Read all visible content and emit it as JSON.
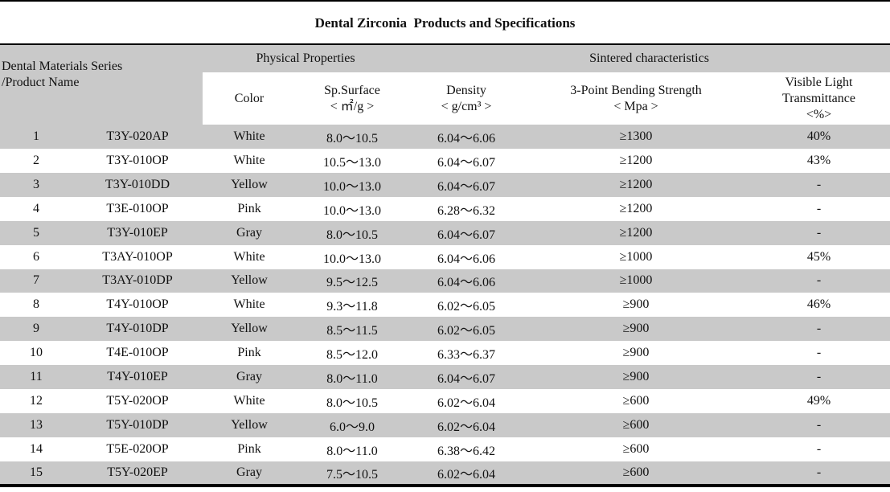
{
  "title": "Dental Zirconia  Products and Specifications",
  "colors": {
    "stripe": "#c9c9c9",
    "border": "#000000",
    "background": "#ffffff"
  },
  "table": {
    "row_header": {
      "line1": "Dental Materials Series",
      "line2": "/Product Name"
    },
    "groups": [
      {
        "label": "Physical Properties"
      },
      {
        "label": "Sintered characteristics"
      }
    ],
    "columns": [
      {
        "label": "Color",
        "unit": ""
      },
      {
        "label": "Sp.Surface",
        "unit": "< ㎡/g >"
      },
      {
        "label": "Density",
        "unit": "< g/cm³ >"
      },
      {
        "label": "3-Point Bending Strength",
        "unit": "< Mpa >"
      },
      {
        "label": "Visible Light",
        "label2": "Transmittance",
        "unit": "<%>"
      }
    ],
    "rows": [
      [
        "1",
        "T3Y-020AP",
        "White",
        "8.0～10.5",
        "6.04～6.06",
        "≥1300",
        "40%"
      ],
      [
        "2",
        "T3Y-010OP",
        "White",
        "10.5～13.0",
        "6.04～6.07",
        "≥1200",
        "43%"
      ],
      [
        "3",
        "T3Y-010DD",
        "Yellow",
        "10.0～13.0",
        "6.04～6.07",
        "≥1200",
        "-"
      ],
      [
        "4",
        "T3E-010OP",
        "Pink",
        "10.0～13.0",
        "6.28～6.32",
        "≥1200",
        "-"
      ],
      [
        "5",
        "T3Y-010EP",
        "Gray",
        "8.0～10.5",
        "6.04～6.07",
        "≥1200",
        "-"
      ],
      [
        "6",
        "T3AY-010OP",
        "White",
        "10.0～13.0",
        "6.04～6.06",
        "≥1000",
        "45%"
      ],
      [
        "7",
        "T3AY-010DP",
        "Yellow",
        "9.5～12.5",
        "6.04～6.06",
        "≥1000",
        "-"
      ],
      [
        "8",
        "T4Y-010OP",
        "White",
        "9.3～11.8",
        "6.02～6.05",
        "≥900",
        "46%"
      ],
      [
        "9",
        "T4Y-010DP",
        "Yellow",
        "8.5～11.5",
        "6.02～6.05",
        "≥900",
        "-"
      ],
      [
        "10",
        "T4E-010OP",
        "Pink",
        "8.5～12.0",
        "6.33～6.37",
        "≥900",
        "-"
      ],
      [
        "11",
        "T4Y-010EP",
        "Gray",
        "8.0～11.0",
        "6.04～6.07",
        "≥900",
        "-"
      ],
      [
        "12",
        "T5Y-020OP",
        "White",
        "8.0～10.5",
        "6.02～6.04",
        "≥600",
        "49%"
      ],
      [
        "13",
        "T5Y-010DP",
        "Yellow",
        "6.0～9.0",
        "6.02～6.04",
        "≥600",
        "-"
      ],
      [
        "14",
        "T5E-020OP",
        "Pink",
        "8.0～11.0",
        "6.38～6.42",
        "≥600",
        "-"
      ],
      [
        "15",
        "T5Y-020EP",
        "Gray",
        "7.5～10.5",
        "6.02～6.04",
        "≥600",
        "-"
      ]
    ]
  }
}
